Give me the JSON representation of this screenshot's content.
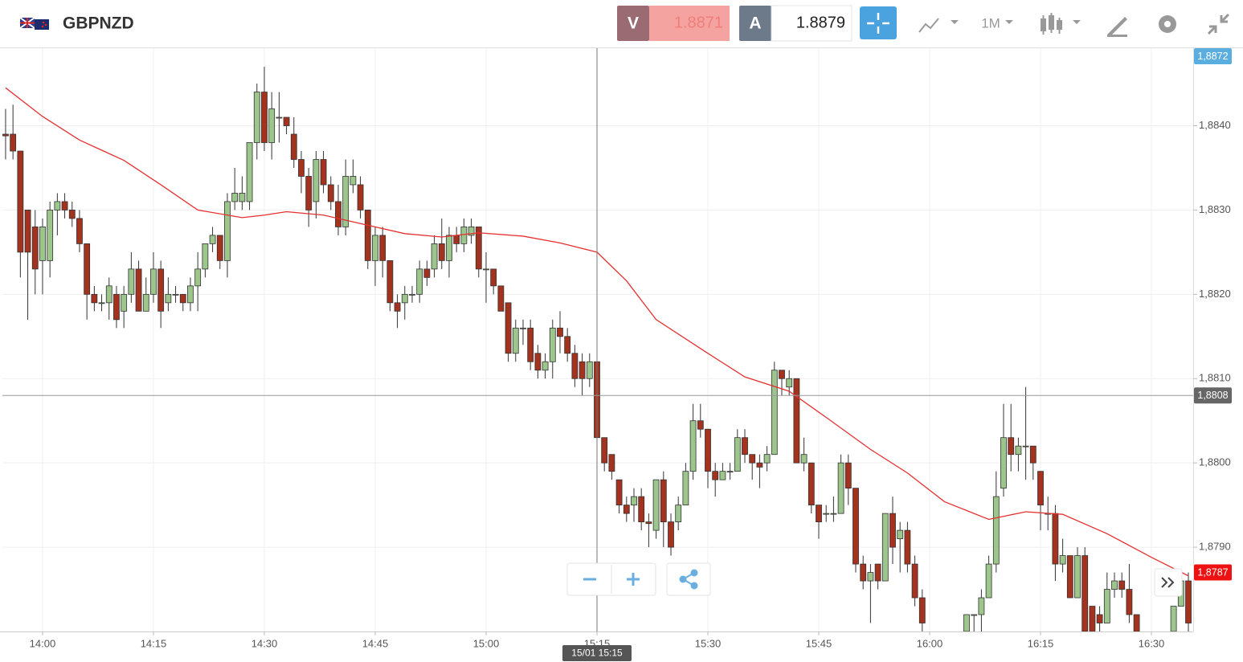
{
  "header": {
    "symbol": "GBPNZD",
    "sell_label": "V",
    "sell_price": "1.8871",
    "buy_label": "A",
    "buy_price": "1.8879",
    "timeframe": "1M"
  },
  "chart_data": {
    "type": "candlestick",
    "up_color": "#9cc68c",
    "down_color": "#a3321e",
    "grid": true,
    "xlim": [
      -5.43,
      155.65
    ],
    "xticks": [
      {
        "value": 0,
        "label": "14:00"
      },
      {
        "value": 15,
        "label": "14:15"
      },
      {
        "value": 30,
        "label": "14:30"
      },
      {
        "value": 45,
        "label": "14:45"
      },
      {
        "value": 60,
        "label": "15:00"
      },
      {
        "value": 75,
        "label": "15:15"
      },
      {
        "value": 90,
        "label": "15:30"
      },
      {
        "value": 105,
        "label": "15:45"
      },
      {
        "value": 120,
        "label": "16:00"
      },
      {
        "value": 135,
        "label": "16:15"
      },
      {
        "value": 150,
        "label": "16:30"
      }
    ],
    "ylim": [
      1.878,
      1.88492
    ],
    "yticks": [
      {
        "value": 1.884,
        "label": "1,8840"
      },
      {
        "value": 1.883,
        "label": "1,8830"
      },
      {
        "value": 1.882,
        "label": "1,8820"
      },
      {
        "value": 1.881,
        "label": "1,8810"
      },
      {
        "value": 1.88,
        "label": "1,8800"
      },
      {
        "value": 1.879,
        "label": "1,8790"
      }
    ],
    "x": [
      -5,
      -4,
      -3,
      -2,
      -1,
      0,
      1,
      2,
      3,
      4,
      5,
      6,
      7,
      8,
      9,
      10,
      11,
      12,
      13,
      14,
      15,
      16,
      17,
      18,
      19,
      20,
      21,
      22,
      23,
      24,
      25,
      26,
      27,
      28,
      29,
      30,
      31,
      32,
      33,
      34,
      35,
      36,
      37,
      38,
      39,
      40,
      41,
      42,
      43,
      44,
      45,
      46,
      47,
      48,
      49,
      50,
      51,
      52,
      53,
      54,
      55,
      56,
      57,
      58,
      59,
      60,
      61,
      62,
      63,
      64,
      65,
      66,
      67,
      68,
      69,
      70,
      71,
      72,
      73,
      74,
      75,
      76,
      77,
      78,
      79,
      80,
      81,
      82,
      83,
      84,
      85,
      86,
      87,
      88,
      89,
      90,
      91,
      92,
      93,
      94,
      95,
      96,
      97,
      98,
      99,
      100,
      101,
      102,
      103,
      104,
      105,
      106,
      107,
      108,
      109,
      110,
      111,
      112,
      113,
      114,
      115,
      116,
      117,
      118,
      119,
      125,
      126,
      127,
      128,
      129,
      130,
      131,
      132,
      133,
      134,
      135,
      136,
      137,
      138,
      139,
      140,
      141,
      142,
      143,
      144,
      145,
      146,
      147,
      148,
      153,
      154,
      155
    ],
    "open": [
      1.8839,
      1.8839,
      1.8837,
      1.883,
      1.8828,
      1.8824,
      1.8824,
      1.883,
      1.8831,
      1.883,
      1.8829,
      1.8826,
      1.882,
      1.8819,
      1.8819,
      1.882,
      1.8818,
      1.882,
      1.8823,
      1.8818,
      1.882,
      1.8823,
      1.8819,
      1.882,
      1.882,
      1.8819,
      1.8821,
      1.8823,
      1.8826,
      1.8827,
      1.8824,
      1.8831,
      1.8831,
      1.8831,
      1.8838,
      1.8844,
      1.8838,
      1.8841,
      1.8841,
      1.8839,
      1.8836,
      1.8834,
      1.8831,
      1.8836,
      1.8833,
      1.8831,
      1.8828,
      1.8833,
      1.8833,
      1.883,
      1.8824,
      1.8827,
      1.8824,
      1.8819,
      1.8819,
      1.882,
      1.882,
      1.8823,
      1.8823,
      1.8826,
      1.8824,
      1.8827,
      1.8826,
      1.8827,
      1.8828,
      1.8823,
      1.8823,
      1.8821,
      1.8819,
      1.8813,
      1.8816,
      1.8816,
      1.8813,
      1.8811,
      1.8812,
      1.8816,
      1.8815,
      1.8813,
      1.8812,
      1.881,
      1.8812,
      1.8803,
      1.8801,
      1.8798,
      1.8795,
      1.8795,
      1.8796,
      1.8793,
      1.8792,
      1.8798,
      1.8793,
      1.8793,
      1.8795,
      1.8799,
      1.8805,
      1.8804,
      1.8799,
      1.8798,
      1.8799,
      1.8799,
      1.8803,
      1.8801,
      1.88,
      1.88,
      1.8801,
      1.8811,
      1.8809,
      1.881,
      1.88,
      1.88,
      1.8795,
      1.8794,
      1.8794,
      1.8794,
      1.88,
      1.8797,
      1.8788,
      1.8786,
      1.8788,
      1.8786,
      1.8794,
      1.8791,
      1.8792,
      1.8788,
      1.8784,
      1.878,
      1.8782,
      1.8782,
      1.8784,
      1.8788,
      1.8797,
      1.8803,
      1.8801,
      1.8802,
      1.8802,
      1.8799,
      1.8794,
      1.8794,
      1.8788,
      1.8789,
      1.8784,
      1.8789,
      1.8783,
      1.8782,
      1.8781,
      1.8785,
      1.8786,
      1.8785,
      1.8782,
      1.878,
      1.8783,
      1.8786
    ],
    "high": [
      1.8842,
      1.88425,
      1.8837,
      1.883,
      1.883,
      1.8829,
      1.8831,
      1.8832,
      1.8832,
      1.8831,
      1.883,
      1.8826,
      1.8821,
      1.882,
      1.8822,
      1.8821,
      1.8821,
      1.8825,
      1.8824,
      1.8822,
      1.8825,
      1.8824,
      1.8822,
      1.8821,
      1.882,
      1.8822,
      1.8825,
      1.8826,
      1.8828,
      1.8827,
      1.8832,
      1.8835,
      1.8834,
      1.8838,
      1.8845,
      1.8847,
      1.8844,
      1.8844,
      1.8841,
      1.8841,
      1.8837,
      1.8835,
      1.8837,
      1.8837,
      1.8834,
      1.8833,
      1.8836,
      1.8836,
      1.8834,
      1.883,
      1.8828,
      1.8828,
      1.8824,
      1.882,
      1.8821,
      1.8821,
      1.8824,
      1.8824,
      1.8827,
      1.8829,
      1.8828,
      1.8828,
      1.8829,
      1.8829,
      1.8828,
      1.8825,
      1.8823,
      1.8821,
      1.8819,
      1.8817,
      1.8817,
      1.8817,
      1.8814,
      1.8813,
      1.8817,
      1.8818,
      1.8816,
      1.8814,
      1.8813,
      1.8813,
      1.8812,
      1.8803,
      1.8801,
      1.8798,
      1.8796,
      1.8797,
      1.8797,
      1.8794,
      1.8798,
      1.8799,
      1.8794,
      1.8796,
      1.88,
      1.8807,
      1.8807,
      1.8804,
      1.88,
      1.88,
      1.88,
      1.8804,
      1.8804,
      1.8801,
      1.8801,
      1.8802,
      1.8812,
      1.8811,
      1.8811,
      1.881,
      1.8803,
      1.88,
      1.8795,
      1.8795,
      1.8796,
      1.8801,
      1.8801,
      1.8797,
      1.8789,
      1.8788,
      1.8788,
      1.8794,
      1.8796,
      1.8793,
      1.8793,
      1.8789,
      1.8785,
      1.8782,
      1.8782,
      1.8785,
      1.8789,
      1.8799,
      1.8807,
      1.8807,
      1.8803,
      1.8809,
      1.8802,
      1.8799,
      1.8796,
      1.8795,
      1.8791,
      1.8789,
      1.879,
      1.879,
      1.8783,
      1.8783,
      1.8787,
      1.8787,
      1.8787,
      1.8788,
      1.8782,
      1.8783,
      1.8787,
      1.8787
    ],
    "low": [
      1.8836,
      1.8836,
      1.8822,
      1.8817,
      1.882,
      1.882,
      1.8822,
      1.8827,
      1.8829,
      1.8828,
      1.8825,
      1.8817,
      1.8818,
      1.8818,
      1.8817,
      1.8816,
      1.8816,
      1.8819,
      1.8818,
      1.8818,
      1.8819,
      1.8816,
      1.8818,
      1.8819,
      1.8818,
      1.8818,
      1.8818,
      1.8822,
      1.8825,
      1.8823,
      1.8822,
      1.883,
      1.883,
      1.883,
      1.8836,
      1.8837,
      1.8836,
      1.8838,
      1.8839,
      1.8835,
      1.8832,
      1.8828,
      1.8829,
      1.8832,
      1.883,
      1.8827,
      1.8827,
      1.8832,
      1.8829,
      1.8823,
      1.8821,
      1.8822,
      1.8818,
      1.8816,
      1.8817,
      1.8819,
      1.8819,
      1.8821,
      1.8822,
      1.8823,
      1.8822,
      1.8825,
      1.8825,
      1.8826,
      1.8822,
      1.8819,
      1.882,
      1.8818,
      1.8812,
      1.8812,
      1.8814,
      1.8811,
      1.881,
      1.881,
      1.881,
      1.8813,
      1.8812,
      1.8809,
      1.8808,
      1.8809,
      1.8802,
      1.8799,
      1.8798,
      1.8794,
      1.8793,
      1.8793,
      1.8792,
      1.879,
      1.8791,
      1.879,
      1.8789,
      1.8792,
      1.8795,
      1.8798,
      1.8803,
      1.8797,
      1.8796,
      1.8798,
      1.8798,
      1.8799,
      1.88,
      1.8798,
      1.8797,
      1.8799,
      1.8801,
      1.8808,
      1.8808,
      1.88,
      1.8799,
      1.8794,
      1.8791,
      1.8793,
      1.8793,
      1.8794,
      1.8795,
      1.8787,
      1.8785,
      1.8781,
      1.8785,
      1.8786,
      1.8788,
      1.8787,
      1.8787,
      1.8783,
      1.878,
      1.878,
      1.878,
      1.878,
      1.8784,
      1.8787,
      1.8796,
      1.8799,
      1.8799,
      1.8798,
      1.8798,
      1.8792,
      1.8792,
      1.8786,
      1.8787,
      1.8784,
      1.8784,
      1.878,
      1.878,
      1.878,
      1.8781,
      1.8784,
      1.8784,
      1.8781,
      1.878,
      1.878,
      1.8783,
      1.878
    ],
    "close": [
      1.88388,
      1.8837,
      1.8825,
      1.8825,
      1.8823,
      1.8828,
      1.883,
      1.8831,
      1.883,
      1.8829,
      1.8826,
      1.882,
      1.8819,
      1.8819,
      1.8821,
      1.8817,
      1.882,
      1.8823,
      1.8818,
      1.882,
      1.8823,
      1.8818,
      1.882,
      1.882,
      1.8819,
      1.8821,
      1.8823,
      1.8826,
      1.8827,
      1.8824,
      1.8831,
      1.8832,
      1.8832,
      1.8838,
      1.8844,
      1.8838,
      1.8842,
      1.8841,
      1.884,
      1.8836,
      1.8834,
      1.883,
      1.8836,
      1.8833,
      1.8831,
      1.8828,
      1.8834,
      1.8834,
      1.883,
      1.8824,
      1.8827,
      1.8824,
      1.8819,
      1.8818,
      1.882,
      1.882,
      1.8823,
      1.8822,
      1.8826,
      1.8824,
      1.8827,
      1.8826,
      1.8828,
      1.8828,
      1.8823,
      1.8823,
      1.8821,
      1.8818,
      1.8813,
      1.8816,
      1.8816,
      1.8812,
      1.8811,
      1.8812,
      1.8816,
      1.8815,
      1.8813,
      1.881,
      1.881,
      1.8812,
      1.8803,
      1.88,
      1.8799,
      1.8795,
      1.8794,
      1.8796,
      1.8793,
      1.87928,
      1.8798,
      1.8793,
      1.879,
      1.8795,
      1.8799,
      1.8805,
      1.8804,
      1.8799,
      1.8798,
      1.8799,
      1.8799,
      1.8803,
      1.8801,
      1.88,
      1.87995,
      1.8801,
      1.8811,
      1.881,
      1.881,
      1.88,
      1.8801,
      1.8795,
      1.8793,
      1.8794,
      1.8794,
      1.88,
      1.8797,
      1.8788,
      1.8786,
      1.8787,
      1.8786,
      1.8794,
      1.879,
      1.8792,
      1.8788,
      1.8784,
      1.8781,
      1.8782,
      1.8782,
      1.8784,
      1.8788,
      1.8796,
      1.8803,
      1.8801,
      1.8802,
      1.8802,
      1.88,
      1.8795,
      1.8794,
      1.8788,
      1.8789,
      1.8784,
      1.8789,
      1.878,
      1.878,
      1.8781,
      1.8785,
      1.8786,
      1.8785,
      1.8782,
      1.878,
      1.8783,
      1.8786,
      1.8781
    ],
    "moving_average": {
      "color": "#e53030",
      "x": [
        -5,
        0,
        5,
        11,
        16,
        21,
        27,
        30,
        33,
        38,
        43,
        49,
        54,
        59,
        65,
        70,
        75,
        79,
        83,
        90,
        95,
        101,
        106,
        112,
        117,
        122,
        128,
        133,
        138,
        144,
        150,
        155
      ],
      "values": [
        1.88445,
        1.88411,
        1.88383,
        1.88359,
        1.8833,
        1.883,
        1.88291,
        1.88294,
        1.88298,
        1.88294,
        1.88284,
        1.88272,
        1.88268,
        1.88273,
        1.88269,
        1.88261,
        1.8825,
        1.88216,
        1.8817,
        1.8813,
        1.88102,
        1.88085,
        1.88054,
        1.88016,
        1.87988,
        1.87954,
        1.87933,
        1.87942,
        1.87939,
        1.87916,
        1.87888,
        1.87866
      ]
    },
    "price_labels": [
      {
        "value": 1.8872,
        "label": "1,8872",
        "color": "#5aaedf"
      },
      {
        "value": 1.8808,
        "label": "1,8808",
        "color": "#666666"
      },
      {
        "value": 1.8787,
        "label": "1,8787",
        "color": "#ee1111"
      }
    ],
    "crosshair": {
      "x": 75,
      "label": "15/01 15:15"
    }
  }
}
